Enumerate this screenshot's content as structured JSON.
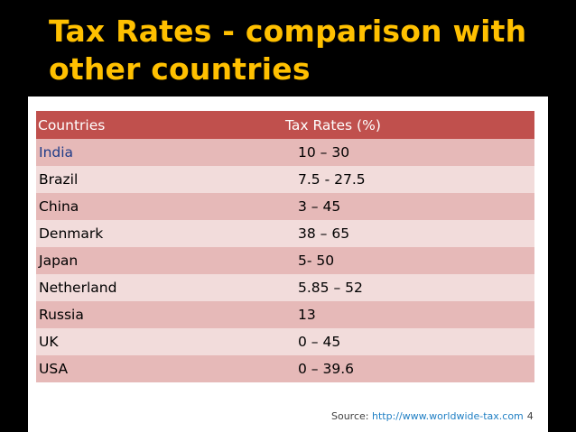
{
  "slide": {
    "title": "Tax Rates - comparison with other countries",
    "page_number": "4"
  },
  "table": {
    "headers": {
      "country": "Countries",
      "rate": "Tax Rates (%)"
    },
    "rows": [
      {
        "country": "India",
        "rate": "10 – 30"
      },
      {
        "country": "Brazil",
        "rate": "7.5 - 27.5"
      },
      {
        "country": "China",
        "rate": "3 – 45"
      },
      {
        "country": "Denmark",
        "rate": "38 – 65"
      },
      {
        "country": "Japan",
        "rate": "5- 50"
      },
      {
        "country": "Netherland",
        "rate": "5.85 – 52"
      },
      {
        "country": "Russia",
        "rate": "13"
      },
      {
        "country": "UK",
        "rate": "0 – 45"
      },
      {
        "country": "USA",
        "rate": "0 – 39.6"
      }
    ]
  },
  "source": {
    "label": "Source: ",
    "url": "http://www.worldwide-tax.com"
  },
  "colors": {
    "background": "#000000",
    "title": "#ffc000",
    "header_fill": "#c0504d",
    "row_odd": "#e6b9b8",
    "row_even": "#f2dcdb",
    "link": "#1f7fc4"
  }
}
